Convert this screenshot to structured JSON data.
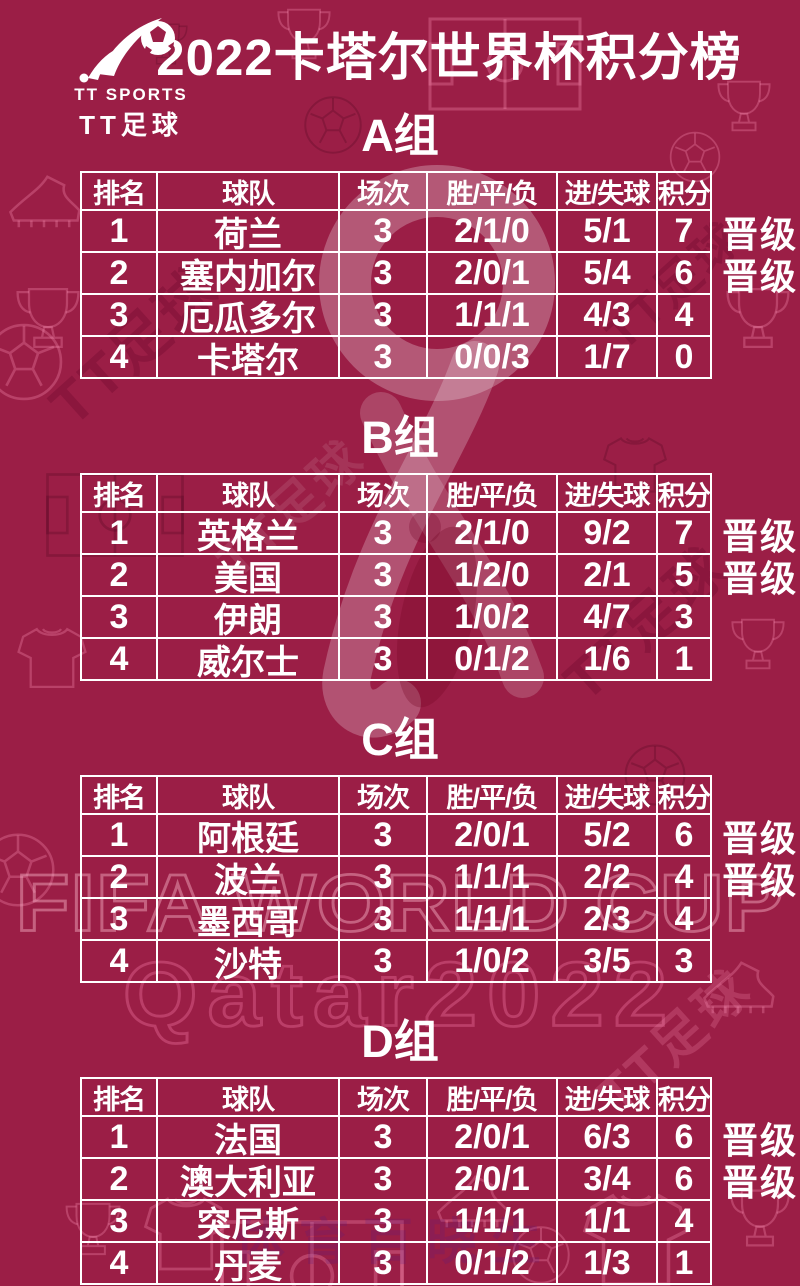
{
  "header": {
    "title": "2022卡塔尔世界杯积分榜",
    "logo": {
      "line1": "TT SPORTS",
      "line2": "TT足球"
    }
  },
  "chart_data": {
    "type": "table",
    "title": "2022卡塔尔世界杯积分榜",
    "columns": [
      "排名",
      "球队",
      "场次",
      "胜/平/负",
      "进/失球",
      "积分"
    ],
    "promoted_label": "晋级",
    "groups": [
      {
        "label": "A组",
        "rows": [
          {
            "rank": "1",
            "team": "荷兰",
            "played": "3",
            "wdl": "2/1/0",
            "goals": "5/1",
            "points": "7",
            "promoted": true
          },
          {
            "rank": "2",
            "team": "塞内加尔",
            "played": "3",
            "wdl": "2/0/1",
            "goals": "5/4",
            "points": "6",
            "promoted": true
          },
          {
            "rank": "3",
            "team": "厄瓜多尔",
            "played": "3",
            "wdl": "1/1/1",
            "goals": "4/3",
            "points": "4",
            "promoted": false
          },
          {
            "rank": "4",
            "team": "卡塔尔",
            "played": "3",
            "wdl": "0/0/3",
            "goals": "1/7",
            "points": "0",
            "promoted": false
          }
        ]
      },
      {
        "label": "B组",
        "rows": [
          {
            "rank": "1",
            "team": "英格兰",
            "played": "3",
            "wdl": "2/1/0",
            "goals": "9/2",
            "points": "7",
            "promoted": true
          },
          {
            "rank": "2",
            "team": "美国",
            "played": "3",
            "wdl": "1/2/0",
            "goals": "2/1",
            "points": "5",
            "promoted": true
          },
          {
            "rank": "3",
            "team": "伊朗",
            "played": "3",
            "wdl": "1/0/2",
            "goals": "4/7",
            "points": "3",
            "promoted": false
          },
          {
            "rank": "4",
            "team": "威尔士",
            "played": "3",
            "wdl": "0/1/2",
            "goals": "1/6",
            "points": "1",
            "promoted": false
          }
        ]
      },
      {
        "label": "C组",
        "rows": [
          {
            "rank": "1",
            "team": "阿根廷",
            "played": "3",
            "wdl": "2/0/1",
            "goals": "5/2",
            "points": "6",
            "promoted": true
          },
          {
            "rank": "2",
            "team": "波兰",
            "played": "3",
            "wdl": "1/1/1",
            "goals": "2/2",
            "points": "4",
            "promoted": true
          },
          {
            "rank": "3",
            "team": "墨西哥",
            "played": "3",
            "wdl": "1/1/1",
            "goals": "2/3",
            "points": "4",
            "promoted": false
          },
          {
            "rank": "4",
            "team": "沙特",
            "played": "3",
            "wdl": "1/0/2",
            "goals": "3/5",
            "points": "3",
            "promoted": false
          }
        ]
      },
      {
        "label": "D组",
        "rows": [
          {
            "rank": "1",
            "team": "法国",
            "played": "3",
            "wdl": "2/0/1",
            "goals": "6/3",
            "points": "6",
            "promoted": true
          },
          {
            "rank": "2",
            "team": "澳大利亚",
            "played": "3",
            "wdl": "2/0/1",
            "goals": "3/4",
            "points": "6",
            "promoted": true
          },
          {
            "rank": "3",
            "team": "突尼斯",
            "played": "3",
            "wdl": "1/1/1",
            "goals": "1/1",
            "points": "4",
            "promoted": false
          },
          {
            "rank": "4",
            "team": "丹麦",
            "played": "3",
            "wdl": "0/1/2",
            "goals": "1/3",
            "points": "1",
            "promoted": false
          }
        ]
      }
    ]
  },
  "watermarks": {
    "fifa": "FIFA WORLD CUP",
    "qatar": "Qatar2022",
    "tt": "TT足球",
    "bottom": "体育百晓生"
  },
  "colors": {
    "background": "#9b1e46",
    "text": "#ffffff",
    "table_line": "#ffffff",
    "watermark_pink": "#ffbed2"
  }
}
